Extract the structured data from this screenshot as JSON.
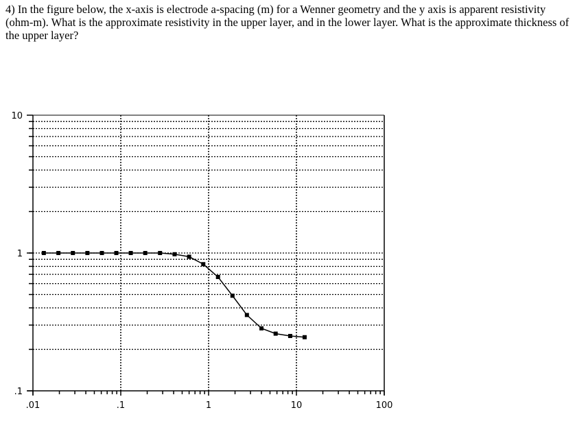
{
  "question": {
    "text": "4) In the figure below, the x-axis is electrode a-spacing (m) for a Wenner geometry and the y axis is apparent resistivity (ohm-m).  What is the approximate resistivity in the upper layer, and in the lower layer.  What is the approximate thickness of the upper layer?"
  },
  "chart_data": {
    "type": "line",
    "title": "",
    "xlabel": "",
    "ylabel": "",
    "xscale": "log",
    "yscale": "log",
    "xlim": [
      0.01,
      100
    ],
    "ylim": [
      0.1,
      10
    ],
    "xticks": [
      ".01",
      ".1",
      "1",
      "10",
      "100"
    ],
    "yticks": [
      ".1",
      "1",
      "10"
    ],
    "grid": "dotted, decades on x, every unit on y",
    "marker": "square",
    "color": "#000000",
    "x": [
      0.0133,
      0.0195,
      0.0285,
      0.0417,
      0.061,
      0.089,
      0.13,
      0.19,
      0.28,
      0.41,
      0.6,
      0.87,
      1.28,
      1.87,
      2.73,
      4.0,
      5.8,
      8.5,
      12.4
    ],
    "y": [
      1.0,
      1.0,
      1.0,
      1.0,
      1.0,
      1.0,
      1.0,
      1.0,
      1.0,
      0.98,
      0.94,
      0.83,
      0.67,
      0.49,
      0.355,
      0.284,
      0.26,
      0.25,
      0.245
    ]
  }
}
